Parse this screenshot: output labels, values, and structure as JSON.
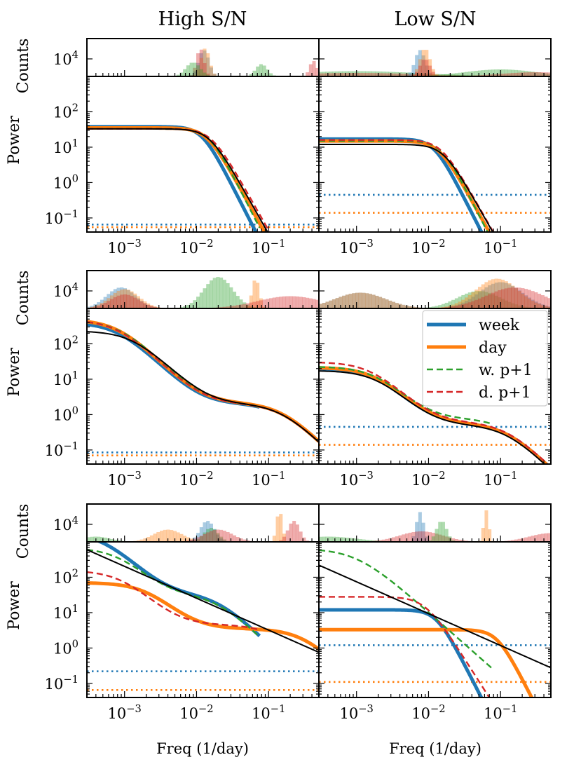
{
  "chart_data": {
    "type": "line",
    "column_titles": [
      "High S/N",
      "Low S/N"
    ],
    "xlabel": "Freq (1/day)",
    "ylabel_hist": "Counts",
    "ylabel_power": "Power",
    "x_scale": "log",
    "x_range": [
      0.0003,
      0.5
    ],
    "x_ticks": [
      {
        "value": 0.001,
        "base": "10",
        "exp": "−3"
      },
      {
        "value": 0.01,
        "base": "10",
        "exp": "−2"
      },
      {
        "value": 0.1,
        "base": "10",
        "exp": "−1"
      }
    ],
    "power_range": [
      0.04,
      1000
    ],
    "power_ticks": [
      {
        "value": 0.1,
        "base": "10",
        "exp": "−1"
      },
      {
        "value": 1,
        "base": "10",
        "exp": "0"
      },
      {
        "value": 10,
        "base": "10",
        "exp": "1"
      },
      {
        "value": 100,
        "base": "10",
        "exp": "2"
      }
    ],
    "hist_tick_label": {
      "value": 10000,
      "base": "10",
      "exp": "4"
    },
    "colors": {
      "week": "#1f77b4",
      "day": "#ff7f0e",
      "w_p1": "#2ca02c",
      "d_p1": "#d62728",
      "true": "#000000",
      "model": "#555555"
    },
    "legend": {
      "location": "upper right of middle-right panel",
      "entries": [
        {
          "label": "week",
          "color": "#1f77b4",
          "style": "thick-solid"
        },
        {
          "label": "day",
          "color": "#ff7f0e",
          "style": "thick-solid"
        },
        {
          "label": "w. p+1",
          "color": "#2ca02c",
          "style": "dashed"
        },
        {
          "label": "d. p+1",
          "color": "#d62728",
          "style": "dashed"
        }
      ]
    },
    "panels": [
      {
        "row": 0,
        "col": 0,
        "noise": {
          "week": 0.065,
          "day": 0.055
        },
        "hist": [
          {
            "series": "week",
            "mu": -1.9,
            "sig": 0.07,
            "h": 0.75
          },
          {
            "series": "day",
            "mu": -1.88,
            "sig": 0.06,
            "h": 0.8
          },
          {
            "series": "d_p1",
            "mu": -1.95,
            "sig": 0.05,
            "h": 0.8
          },
          {
            "series": "w_p1",
            "mu": -2.05,
            "sig": 0.1,
            "h": 0.4
          },
          {
            "series": "w_p1",
            "mu": -1.1,
            "sig": 0.08,
            "h": 0.35
          },
          {
            "series": "d_p1",
            "mu": -0.38,
            "sig": 0.05,
            "h": 0.45
          }
        ],
        "curves": [
          {
            "series": "model",
            "type": "sho",
            "fmin": 0.0003,
            "fmax": 0.14,
            "p0": 38,
            "fc": 0.012,
            "q": 2
          },
          {
            "series": "week",
            "type": "sho",
            "fmin": 0.0003,
            "fmax": 0.07,
            "p0": 38,
            "fc": 0.012,
            "q": 2
          },
          {
            "series": "day",
            "type": "sho",
            "fmin": 0.0003,
            "fmax": 0.5,
            "p0": 35,
            "fc": 0.014,
            "q": 1.85
          },
          {
            "series": "w_p1",
            "type": "sho",
            "fmin": 0.0003,
            "fmax": 0.075,
            "p0": 33,
            "fc": 0.015,
            "q": 2
          },
          {
            "series": "d_p1",
            "type": "sho",
            "fmin": 0.0003,
            "fmax": 0.5,
            "p0": 33,
            "fc": 0.016,
            "q": 1.8
          },
          {
            "series": "true",
            "type": "sho",
            "fmin": 0.0003,
            "fmax": 0.5,
            "p0": 33,
            "fc": 0.015,
            "q": 1.8
          }
        ]
      },
      {
        "row": 0,
        "col": 1,
        "noise": {
          "week": 0.45,
          "day": 0.14
        },
        "hist": [
          {
            "series": "w_p1",
            "mu": -3.0,
            "sig": 0.9,
            "h": 0.15
          },
          {
            "series": "d_p1",
            "mu": -3.0,
            "sig": 0.9,
            "h": 0.1
          },
          {
            "series": "week",
            "mu": -2.12,
            "sig": 0.07,
            "h": 0.75
          },
          {
            "series": "day",
            "mu": -2.05,
            "sig": 0.07,
            "h": 0.8
          },
          {
            "series": "d_p1",
            "mu": -2.05,
            "sig": 0.07,
            "h": 0.5
          },
          {
            "series": "w_p1",
            "mu": -1.0,
            "sig": 0.5,
            "h": 0.2
          },
          {
            "series": "d_p1",
            "mu": -0.5,
            "sig": 0.5,
            "h": 0.12
          }
        ],
        "curves": [
          {
            "series": "model",
            "type": "sho",
            "fmin": 0.0003,
            "fmax": 0.14,
            "p0": 17,
            "fc": 0.012,
            "q": 2
          },
          {
            "series": "week",
            "type": "sho",
            "fmin": 0.0003,
            "fmax": 0.07,
            "p0": 17,
            "fc": 0.012,
            "q": 2
          },
          {
            "series": "day",
            "type": "sho",
            "fmin": 0.0003,
            "fmax": 0.5,
            "p0": 15,
            "fc": 0.014,
            "q": 1.85
          },
          {
            "series": "w_p1",
            "type": "sho",
            "fmin": 0.0003,
            "fmax": 0.075,
            "p0": 15,
            "fc": 0.015,
            "q": 2
          },
          {
            "series": "d_p1",
            "type": "sho",
            "fmin": 0.0003,
            "fmax": 0.5,
            "p0": 16,
            "fc": 0.015,
            "q": 1.8
          },
          {
            "series": "true",
            "type": "sho",
            "fmin": 0.0003,
            "fmax": 0.5,
            "p0": 12,
            "fc": 0.016,
            "q": 1.8
          }
        ]
      },
      {
        "row": 1,
        "col": 0,
        "noise": {
          "week": 0.085,
          "day": 0.07
        },
        "hist": [
          {
            "series": "week",
            "mu": -3.05,
            "sig": 0.2,
            "h": 0.6
          },
          {
            "series": "day",
            "mu": -3.0,
            "sig": 0.2,
            "h": 0.55
          },
          {
            "series": "d_p1",
            "mu": -3.0,
            "sig": 0.2,
            "h": 0.4
          },
          {
            "series": "w_p1",
            "mu": -1.7,
            "sig": 0.2,
            "h": 0.9
          },
          {
            "series": "day",
            "mu": -1.18,
            "sig": 0.05,
            "h": 0.85
          },
          {
            "series": "d_p1",
            "mu": -0.7,
            "sig": 0.45,
            "h": 0.35
          }
        ],
        "curves": [
          {
            "series": "week",
            "type": "dbl",
            "fmin": 0.0003,
            "fmax": 0.075,
            "a1": 400,
            "f1": 0.0008,
            "a2": 2,
            "f2": 0.15
          },
          {
            "series": "day",
            "type": "dbl",
            "fmin": 0.0003,
            "fmax": 0.5,
            "a1": 480,
            "f1": 0.0008,
            "a2": 2.1,
            "f2": 0.15
          },
          {
            "series": "w_p1",
            "type": "dbl",
            "fmin": 0.0003,
            "fmax": 0.075,
            "a1": 460,
            "f1": 0.00085,
            "a2": 2,
            "f2": 0.15
          },
          {
            "series": "d_p1",
            "type": "dbl",
            "fmin": 0.0003,
            "fmax": 0.5,
            "a1": 470,
            "f1": 0.0008,
            "a2": 2,
            "f2": 0.15
          },
          {
            "series": "true",
            "type": "dbl",
            "fmin": 0.0003,
            "fmax": 0.5,
            "a1": 230,
            "f1": 0.0013,
            "a2": 2,
            "f2": 0.15
          }
        ]
      },
      {
        "row": 1,
        "col": 1,
        "noise": {
          "week": 0.45,
          "day": 0.14
        },
        "hist": [
          {
            "series": "week",
            "mu": -2.95,
            "sig": 0.35,
            "h": 0.45
          },
          {
            "series": "day",
            "mu": -2.95,
            "sig": 0.35,
            "h": 0.45
          },
          {
            "series": "w_p1",
            "mu": -1.3,
            "sig": 0.3,
            "h": 0.5
          },
          {
            "series": "week",
            "mu": -1.0,
            "sig": 0.3,
            "h": 0.75
          },
          {
            "series": "day",
            "mu": -1.05,
            "sig": 0.3,
            "h": 0.85
          },
          {
            "series": "d_p1",
            "mu": -0.8,
            "sig": 0.4,
            "h": 0.6
          }
        ],
        "curves": [
          {
            "series": "week",
            "type": "dbl",
            "fmin": 0.0003,
            "fmax": 0.5,
            "a1": 20,
            "f1": 0.0018,
            "a2": 0.55,
            "f2": 0.12
          },
          {
            "series": "day",
            "type": "dbl",
            "fmin": 0.0003,
            "fmax": 0.5,
            "a1": 21,
            "f1": 0.0018,
            "a2": 0.55,
            "f2": 0.12
          },
          {
            "series": "w_p1",
            "type": "dbl",
            "fmin": 0.0003,
            "fmax": 0.075,
            "a1": 22,
            "f1": 0.0018,
            "a2": 0.75,
            "f2": 0.12
          },
          {
            "series": "d_p1",
            "type": "dbl",
            "fmin": 0.0003,
            "fmax": 0.5,
            "a1": 30,
            "f1": 0.0016,
            "a2": 0.6,
            "f2": 0.12
          },
          {
            "series": "true",
            "type": "dbl",
            "fmin": 0.0003,
            "fmax": 0.5,
            "a1": 17,
            "f1": 0.0019,
            "a2": 0.5,
            "f2": 0.12
          }
        ]
      },
      {
        "row": 2,
        "col": 0,
        "noise": {
          "week": 0.22,
          "day": 0.065
        },
        "hist": [
          {
            "series": "w_p1",
            "mu": -3.4,
            "sig": 0.2,
            "h": 0.15
          },
          {
            "series": "day",
            "mu": -2.4,
            "sig": 0.2,
            "h": 0.35
          },
          {
            "series": "week",
            "mu": -1.85,
            "sig": 0.1,
            "h": 0.6
          },
          {
            "series": "w_p1",
            "mu": -1.8,
            "sig": 0.1,
            "h": 0.4
          },
          {
            "series": "d_p1",
            "mu": -1.7,
            "sig": 0.2,
            "h": 0.35
          },
          {
            "series": "day",
            "mu": -0.85,
            "sig": 0.04,
            "h": 0.9
          },
          {
            "series": "d_p1",
            "mu": -0.65,
            "sig": 0.08,
            "h": 0.6
          }
        ],
        "curves": [
          {
            "series": "week",
            "type": "dbl",
            "fmin": 0.0003,
            "fmax": 0.075,
            "a1": 1800,
            "f1": 0.0005,
            "a2": 32,
            "f2": 0.02
          },
          {
            "series": "day",
            "type": "dbl",
            "fmin": 0.0003,
            "fmax": 0.5,
            "a1": 67,
            "f1": 0.002,
            "a2": 3.5,
            "f2": 0.3
          },
          {
            "series": "w_p1",
            "type": "dbl",
            "fmin": 0.0003,
            "fmax": 0.075,
            "a1": 650,
            "f1": 0.0008,
            "a2": 30,
            "f2": 0.02
          },
          {
            "series": "d_p1",
            "type": "dbl",
            "fmin": 0.0003,
            "fmax": 0.075,
            "a1": 150,
            "f1": 0.0009,
            "a2": 4.5,
            "f2": 0.12
          },
          {
            "series": "true",
            "type": "pow",
            "fmin": 0.0003,
            "fmax": 0.5,
            "p": 600,
            "f0": 0.0003,
            "alpha": 0.9
          }
        ]
      },
      {
        "row": 2,
        "col": 1,
        "noise": {
          "week": 1.2,
          "day": 0.11
        },
        "hist": [
          {
            "series": "w_p1",
            "mu": -3.4,
            "sig": 0.4,
            "h": 0.15
          },
          {
            "series": "week",
            "mu": -2.12,
            "sig": 0.05,
            "h": 0.85
          },
          {
            "series": "d_p1",
            "mu": -2.1,
            "sig": 0.3,
            "h": 0.3
          },
          {
            "series": "w_p1",
            "mu": -1.82,
            "sig": 0.07,
            "h": 0.6
          },
          {
            "series": "day",
            "mu": -1.2,
            "sig": 0.035,
            "h": 0.9
          },
          {
            "series": "d_p1",
            "mu": -0.3,
            "sig": 0.3,
            "h": 0.25
          }
        ],
        "curves": [
          {
            "series": "week",
            "type": "sho",
            "fmin": 0.0003,
            "fmax": 0.07,
            "p0": 12,
            "fc": 0.013,
            "q": 2
          },
          {
            "series": "day",
            "type": "sho",
            "fmin": 0.0003,
            "fmax": 0.5,
            "p0": 3.3,
            "fc": 0.09,
            "q": 2
          },
          {
            "series": "w_p1",
            "type": "sho",
            "fmin": 0.0003,
            "fmax": 0.075,
            "p0": 650,
            "fc": 0.001,
            "q": 0.9
          },
          {
            "series": "d_p1",
            "type": "sho",
            "fmin": 0.0003,
            "fmax": 0.075,
            "p0": 28,
            "fc": 0.009,
            "q": 1.6
          },
          {
            "series": "true",
            "type": "pow",
            "fmin": 0.0003,
            "fmax": 0.5,
            "p": 220,
            "f0": 0.0003,
            "alpha": 0.9
          }
        ]
      }
    ]
  }
}
